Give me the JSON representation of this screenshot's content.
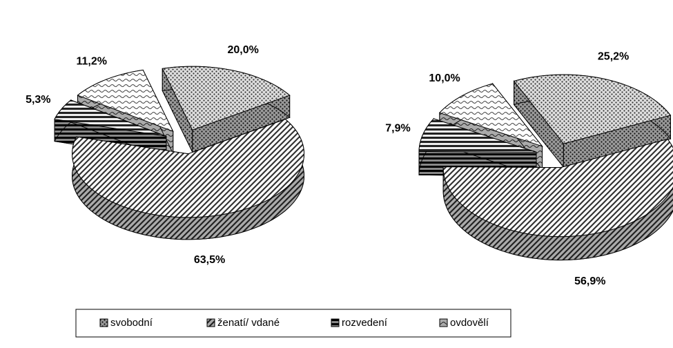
{
  "chart_data": [
    {
      "type": "pie",
      "categories": [
        "svobodní",
        "ženatí/ vdané",
        "rozvedení",
        "ovdovělí"
      ],
      "values": [
        20.0,
        63.5,
        5.3,
        11.2
      ],
      "value_labels": [
        "20,0%",
        "63,5%",
        "5,3%",
        "11,2%"
      ]
    },
    {
      "type": "pie",
      "values": [
        25.2,
        56.9,
        7.9,
        10.0
      ],
      "value_labels": [
        "25,2%",
        "56,9%",
        "7,9%",
        "10,0%"
      ]
    }
  ]
}
